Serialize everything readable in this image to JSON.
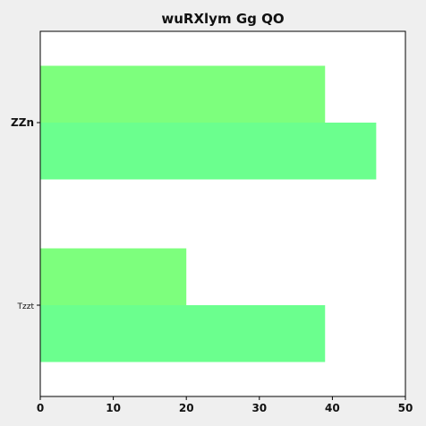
{
  "chart_data": {
    "type": "bar",
    "orientation": "horizontal",
    "title": "wuRXlym  Gg QO",
    "categories": [
      "ZZn",
      "Tzzt"
    ],
    "series": [
      {
        "values": [
          39,
          20
        ],
        "color": "#7dff7d"
      },
      {
        "values": [
          46,
          39
        ],
        "color": "#6bff8e"
      }
    ],
    "xlim": [
      0,
      50
    ],
    "xticks": [
      0,
      10,
      20,
      30,
      40,
      50
    ],
    "xlabel": "",
    "ylabel": "",
    "grid": false,
    "legend": "none"
  }
}
